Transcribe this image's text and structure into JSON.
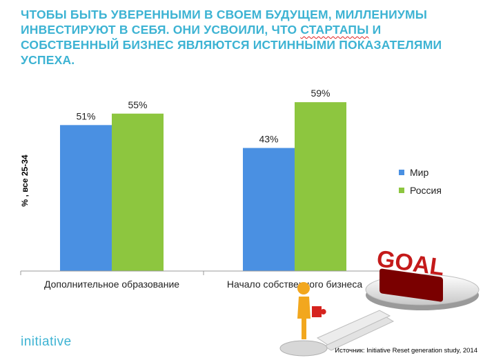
{
  "headline": {
    "part1": "ЧТОБЫ БЫТЬ УВЕРЕННЫМИ В СВОЕМ БУДУЩЕМ, МИЛЛЕНИУМЫ ИНВЕСТИРУЮТ В СЕБЯ. ОНИ УСВОИЛИ, ЧТО ",
    "highlight": "СТАРТАПЫ",
    "part2": " И СОБСТВЕННЫЙ БИЗНЕС ЯВЛЯЮТСЯ ИСТИННЫМИ ПОКАЗАТЕЛЯМИ УСПЕХА."
  },
  "chart_data": {
    "type": "bar",
    "categories": [
      "Дополнительное образование",
      "Начало собственного бизнеса"
    ],
    "series": [
      {
        "name": "Мир",
        "values": [
          51,
          43
        ],
        "labels": [
          "51%",
          "43%"
        ],
        "color": "#4a90e2"
      },
      {
        "name": "Россия",
        "values": [
          55,
          59
        ],
        "labels": [
          "55%",
          "59%"
        ],
        "color": "#8dc63f"
      }
    ],
    "ylabel": "% , все 25-34",
    "ylim": [
      0,
      70
    ],
    "grid": false,
    "legend_position": "right"
  },
  "illustration": {
    "goal_text": "GOAL"
  },
  "footer": {
    "logo": "initiative",
    "source": "Источник: Initiative Reset generation study, 2014"
  },
  "colors": {
    "accent": "#3db3d3",
    "axis": "#9a9a9a"
  }
}
